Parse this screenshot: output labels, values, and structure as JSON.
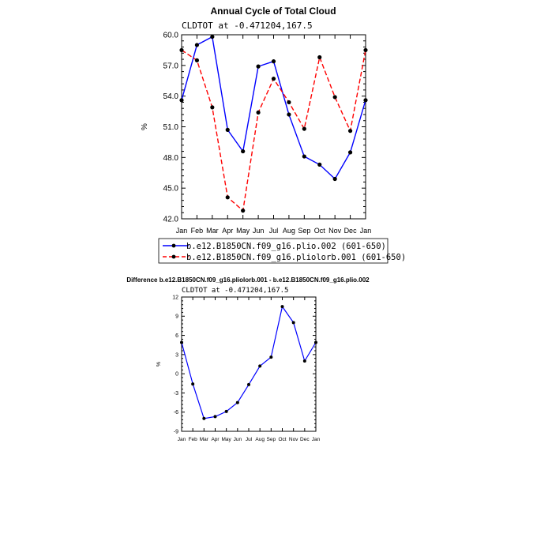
{
  "chart_data": [
    {
      "type": "line",
      "title": "Annual Cycle of Total Cloud",
      "subtitle": "CLDTOT at -0.471204,167.5",
      "xlabel": "",
      "ylabel": "%",
      "categories": [
        "Jan",
        "Feb",
        "Mar",
        "Apr",
        "May",
        "Jun",
        "Jul",
        "Aug",
        "Sep",
        "Oct",
        "Nov",
        "Dec",
        "Jan"
      ],
      "ylim": [
        42.0,
        60.0
      ],
      "yticks": [
        "42.0",
        "45.0",
        "48.0",
        "51.0",
        "54.0",
        "57.0",
        "60.0"
      ],
      "grid": false,
      "legend_position": "bottom",
      "series": [
        {
          "name": "b.e12.B1850CN.f09_g16.plio.002 (601-650)",
          "color": "#0000ff",
          "dash": "solid",
          "values": [
            53.6,
            59.0,
            59.8,
            50.7,
            48.6,
            56.9,
            57.4,
            52.2,
            48.1,
            47.3,
            45.9,
            48.5,
            53.6
          ]
        },
        {
          "name": "b.e12.B1850CN.f09_g16.pliolorb.001 (601-650)",
          "color": "#ff0000",
          "dash": "dashed",
          "values": [
            58.5,
            57.5,
            52.9,
            44.1,
            42.8,
            52.4,
            55.7,
            53.4,
            50.8,
            57.8,
            53.9,
            50.6,
            58.5
          ]
        }
      ]
    },
    {
      "type": "line",
      "title": "Difference b.e12.B1850CN.f09_g16.pliolorb.001 - b.e12.B1850CN.f09_g16.plio.002",
      "subtitle": "CLDTOT at -0.471204,167.5",
      "xlabel": "",
      "ylabel": "%",
      "categories": [
        "Jan",
        "Feb",
        "Mar",
        "Apr",
        "May",
        "Jun",
        "Jul",
        "Aug",
        "Sep",
        "Oct",
        "Nov",
        "Dec",
        "Jan"
      ],
      "ylim": [
        -9,
        12
      ],
      "yticks": [
        "-9",
        "-6",
        "-3",
        "0",
        "3",
        "6",
        "9",
        "12"
      ],
      "grid": false,
      "series": [
        {
          "name": "",
          "color": "#0000ff",
          "dash": "solid",
          "values": [
            4.9,
            -1.6,
            -7.0,
            -6.7,
            -5.9,
            -4.5,
            -1.7,
            1.2,
            2.6,
            10.5,
            8.0,
            2.0,
            4.9
          ]
        }
      ]
    }
  ]
}
